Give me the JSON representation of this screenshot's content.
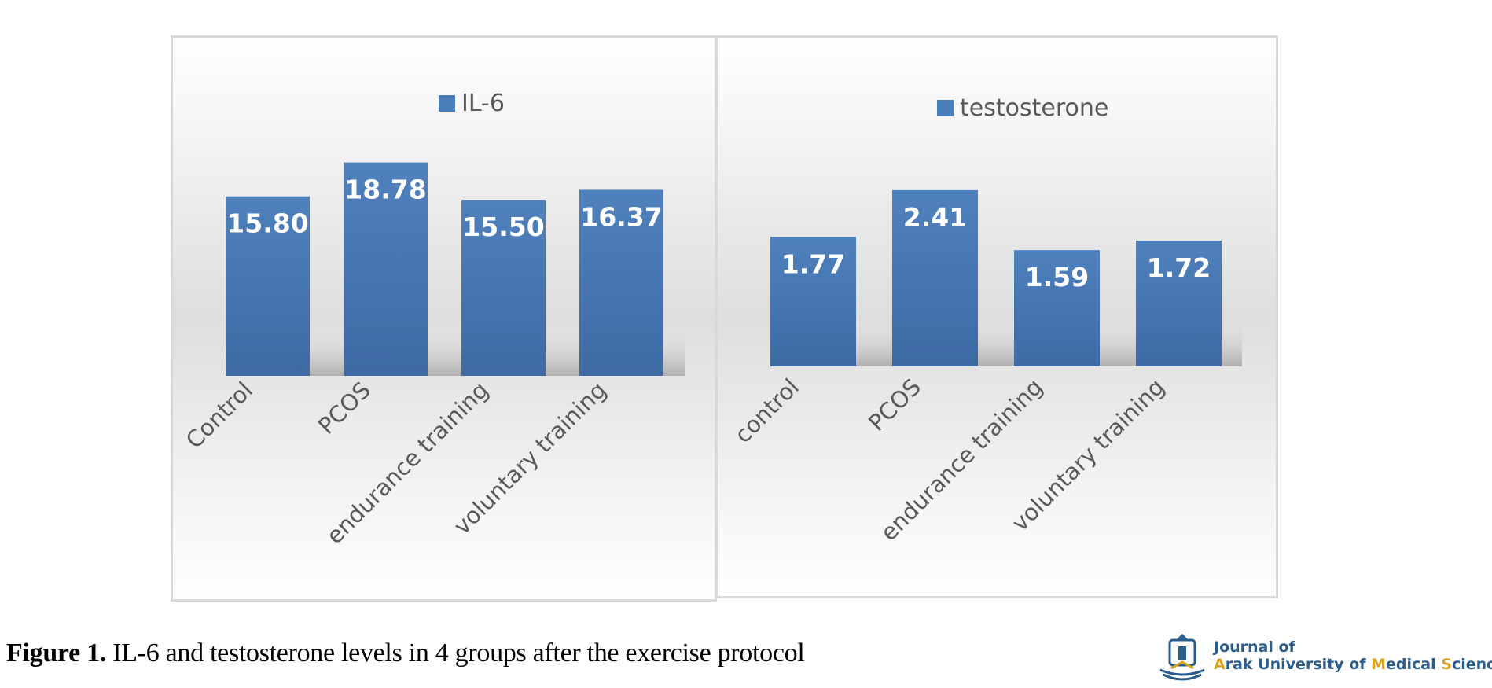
{
  "chart_data": [
    {
      "type": "bar",
      "categories": [
        "Control",
        "PCOS",
        "endurance training",
        "voluntary training"
      ],
      "series": [
        {
          "name": "IL-6",
          "values": [
            15.8,
            18.78,
            15.5,
            16.37
          ]
        }
      ],
      "data_labels": [
        "15.80",
        "18.78",
        "15.50",
        "16.37"
      ],
      "legend": "top-center",
      "grid": false,
      "bar_color": "#4a7ebb"
    },
    {
      "type": "bar",
      "categories": [
        "control",
        "PCOS",
        "endurance training",
        "voluntary training"
      ],
      "series": [
        {
          "name": "testosterone",
          "values": [
            1.77,
            2.41,
            1.59,
            1.72
          ]
        }
      ],
      "data_labels": [
        "1.77",
        "2.41",
        "1.59",
        "1.72"
      ],
      "legend": "top-center",
      "grid": false,
      "bar_color": "#4a7ebb"
    }
  ],
  "caption": {
    "label": "Figure 1.",
    "text": " IL-6 and testosterone levels in 4 groups after the exercise protocol"
  },
  "logo": {
    "line1": "Journal of",
    "line2_parts": [
      "A",
      "rak University of ",
      "M",
      "edical ",
      "S",
      "ciences"
    ],
    "icon": "journal-emblem-icon"
  }
}
